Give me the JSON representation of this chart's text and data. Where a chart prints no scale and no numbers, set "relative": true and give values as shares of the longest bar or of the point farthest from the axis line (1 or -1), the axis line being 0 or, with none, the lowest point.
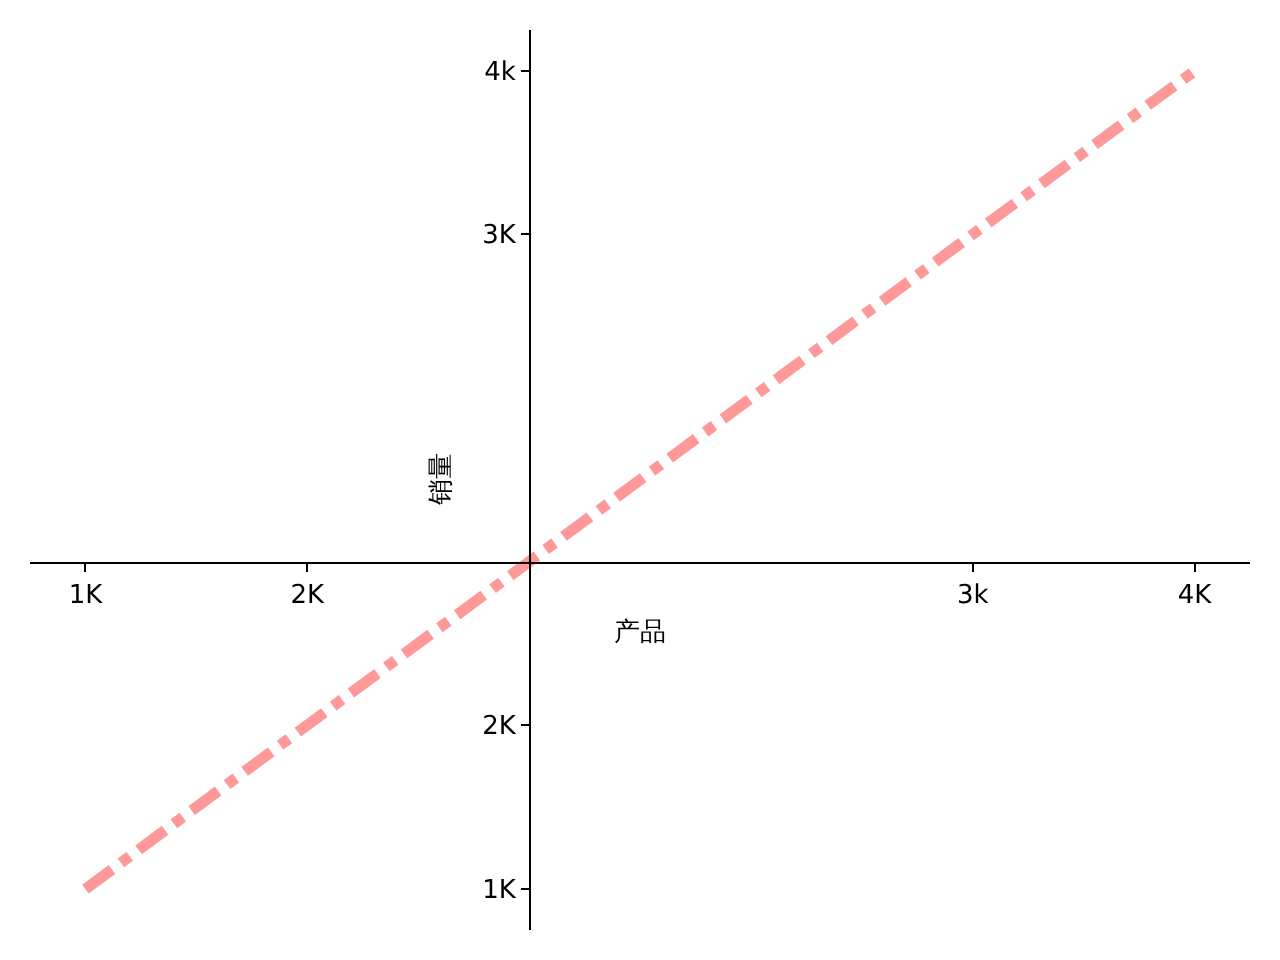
{
  "chart_data": {
    "type": "line",
    "xlabel": "产品",
    "ylabel": "销量",
    "relative": true,
    "categories": [
      "1K",
      "2K",
      null,
      null,
      "3k",
      "4K"
    ],
    "series": [
      {
        "color": "#ff9999",
        "values": [
          -0.667,
          -0.333,
          0,
          0.333,
          0.667,
          1
        ]
      }
    ],
    "annotations": [
      "1K",
      "2K",
      "3K",
      "4k"
    ],
    "legend": false,
    "marker": "none",
    "line_style": "dashdot"
  }
}
